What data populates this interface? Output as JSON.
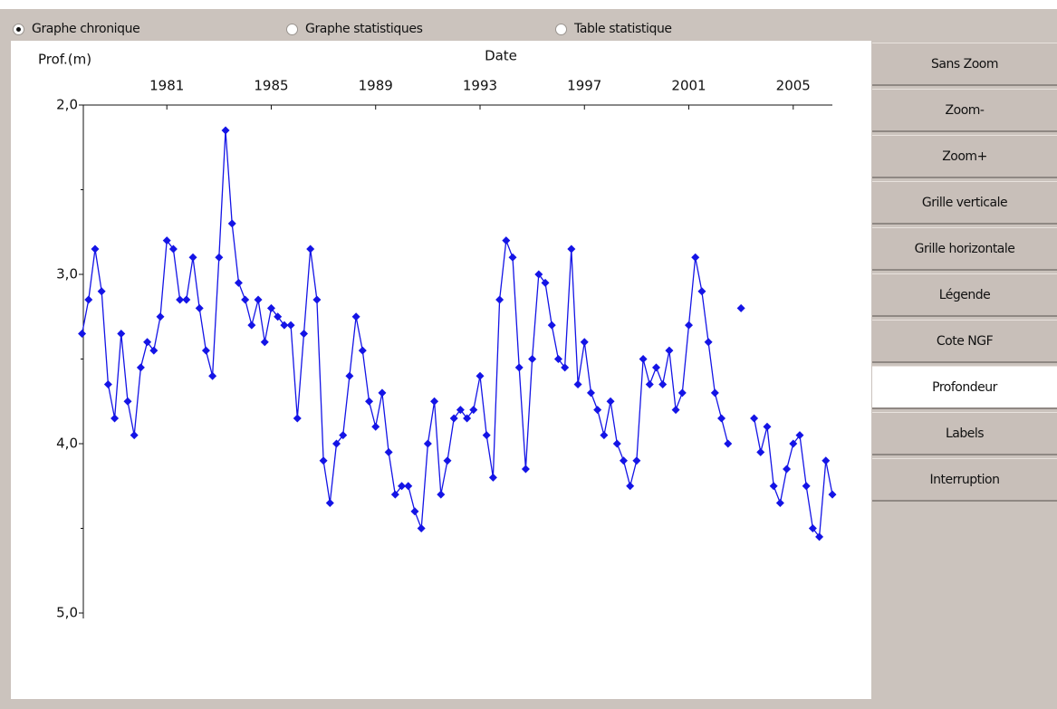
{
  "radio_options": [
    "Graphe chronique",
    "Graphe statistiques",
    "Table statistique"
  ],
  "radio_selected": 0,
  "buttons": [
    "Sans Zoom",
    "Zoom-",
    "Zoom+",
    "Grille verticale",
    "Grille horizontale",
    "Légende",
    "Cote NGF",
    "Profondeur",
    "Labels",
    "Interruption"
  ],
  "button_active": 7,
  "chart_data": {
    "type": "line",
    "x_label": "Date",
    "y_label": "Prof.(m)",
    "xlim": [
      1977.8,
      2006.5
    ],
    "xticks": [
      1981,
      1985,
      1989,
      1993,
      1997,
      2001,
      2005
    ],
    "ylim": [
      2.0,
      5.0
    ],
    "yticks": [
      {
        "value": 2.0,
        "label": "2,0"
      },
      {
        "value": 3.0,
        "label": "3,0"
      },
      {
        "value": 4.0,
        "label": "4,0"
      },
      {
        "value": 5.0,
        "label": "5,0"
      }
    ],
    "yminor_ticks": [
      2.5,
      3.5,
      4.5
    ],
    "y_inverted": true,
    "grid": false,
    "x": [
      1977.75,
      1978,
      1978.25,
      1978.5,
      1978.75,
      1979,
      1979.25,
      1979.5,
      1979.75,
      1980,
      1980.25,
      1980.5,
      1980.75,
      1981,
      1981.25,
      1981.5,
      1981.75,
      1982,
      1982.25,
      1982.5,
      1982.75,
      1983,
      1983.25,
      1983.5,
      1983.75,
      1984,
      1984.25,
      1984.5,
      1984.75,
      1985,
      1985.25,
      1985.5,
      1985.75,
      1986,
      1986.25,
      1986.5,
      1986.75,
      1987,
      1987.25,
      1987.5,
      1987.75,
      1988,
      1988.25,
      1988.5,
      1988.75,
      1989,
      1989.25,
      1989.5,
      1989.75,
      1990,
      1990.25,
      1990.5,
      1990.75,
      1991,
      1991.25,
      1991.5,
      1991.75,
      1992,
      1992.25,
      1992.5,
      1992.75,
      1993,
      1993.25,
      1993.5,
      1993.75,
      1994,
      1994.25,
      1994.5,
      1994.75,
      1995,
      1995.25,
      1995.5,
      1995.75,
      1996,
      1996.25,
      1996.5,
      1996.75,
      1997,
      1997.25,
      1997.5,
      1997.75,
      1998,
      1998.25,
      1998.5,
      1998.75,
      1999,
      1999.25,
      1999.5,
      1999.75,
      2000,
      2000.25,
      2000.5,
      2000.75,
      2001,
      2001.25,
      2001.5,
      2001.75,
      2002,
      2002.25,
      2002.5,
      2002.75,
      2003,
      2003.25,
      2003.5,
      2003.75,
      2004,
      2004.25,
      2004.5,
      2004.75,
      2005,
      2005.25,
      2005.5,
      2005.75,
      2006,
      2006.25,
      2006.5
    ],
    "series": [
      {
        "color": "#1414e6",
        "values": [
          3.35,
          3.15,
          2.85,
          3.1,
          3.65,
          3.85,
          3.35,
          3.75,
          3.95,
          3.55,
          3.4,
          3.45,
          3.25,
          2.8,
          2.85,
          3.15,
          3.15,
          2.9,
          3.2,
          3.45,
          3.6,
          2.9,
          2.15,
          2.7,
          3.05,
          3.15,
          3.3,
          3.15,
          3.4,
          3.2,
          3.25,
          3.3,
          3.3,
          3.85,
          3.35,
          2.85,
          3.15,
          4.1,
          4.35,
          4.0,
          3.95,
          3.6,
          3.25,
          3.45,
          3.75,
          3.9,
          3.7,
          4.05,
          4.3,
          4.25,
          4.25,
          4.4,
          4.5,
          4.0,
          3.75,
          4.3,
          4.1,
          3.85,
          3.8,
          3.85,
          3.8,
          3.6,
          3.95,
          4.2,
          3.15,
          2.8,
          2.9,
          3.55,
          4.15,
          3.5,
          3.0,
          3.05,
          3.3,
          3.5,
          3.55,
          2.85,
          3.65,
          3.4,
          3.7,
          3.8,
          3.95,
          3.75,
          4.0,
          4.1,
          4.25,
          4.1,
          3.5,
          3.65,
          3.55,
          3.65,
          3.45,
          3.8,
          3.7,
          3.3,
          2.9,
          3.1,
          3.4,
          3.7,
          3.85,
          4.0,
          null,
          3.2,
          null,
          3.85,
          4.05,
          3.9,
          4.25,
          4.35,
          4.15,
          4.0,
          3.95,
          4.25,
          4.5,
          4.55,
          4.1,
          4.3
        ]
      }
    ]
  }
}
